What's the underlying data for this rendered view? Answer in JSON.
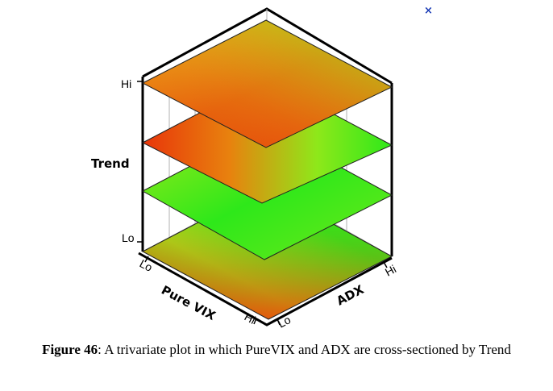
{
  "close_glyph": "×",
  "plot": {
    "z_axis_title": "Trend",
    "z_low": "Lo",
    "z_high": "Hi",
    "x_axis_title": "Pure VIX",
    "x_low": "Lo",
    "x_high": "Hi",
    "y_axis_title": "ADX",
    "y_low": "Lo",
    "y_high": "Hi",
    "colors": {
      "red": "#e8350a",
      "orange": "#f08a1a",
      "green": "#2ee81a",
      "lime": "#a8e81a"
    }
  },
  "caption": {
    "figure_number": "Figure 46",
    "text": ": A trivariate plot in which PureVIX and ADX are cross-sectioned by Trend"
  }
}
